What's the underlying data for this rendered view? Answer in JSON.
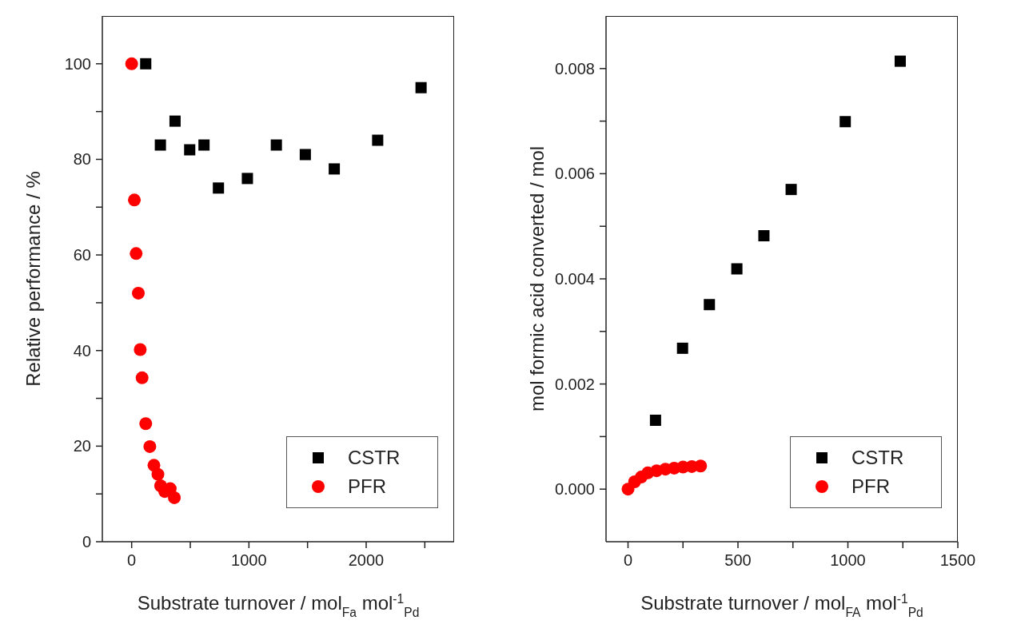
{
  "chart_data": [
    {
      "type": "scatter",
      "xlabel": "Substrate turnover / mol$_{Fa}$ mol$^{-1}$$_{Pd}$",
      "ylabel": "Relative performance / %",
      "xlim": [
        -250,
        2750
      ],
      "xticks": [
        0,
        {
          "value": 500,
          "label": null
        },
        1000,
        {
          "value": 1500,
          "label": null
        },
        2000,
        {
          "value": 2500,
          "label": null
        }
      ],
      "ylim": [
        0,
        110
      ],
      "yticks": [
        0,
        {
          "value": 10,
          "label": null
        },
        20,
        {
          "value": 30,
          "label": null
        },
        40,
        {
          "value": 50,
          "label": null
        },
        60,
        {
          "value": 70,
          "label": null
        },
        80,
        {
          "value": 90,
          "label": null
        },
        100
      ],
      "grid": false,
      "legend": "bottom right",
      "series": [
        {
          "name": "CSTR",
          "color": "#000000",
          "marker": "square",
          "x": [
            120,
            245,
            370,
            495,
            617,
            740,
            987,
            1234,
            1481,
            1728,
            2098,
            2468
          ],
          "values": [
            100,
            83,
            88,
            82,
            83,
            74,
            76,
            83,
            81,
            78,
            84,
            95
          ]
        },
        {
          "name": "PFR",
          "color": "#ff0000",
          "marker": "circle",
          "x": [
            0,
            23,
            38,
            57,
            73,
            89,
            120,
            155,
            190,
            224,
            247,
            282,
            329,
            364
          ],
          "values": [
            100,
            71.5,
            60.3,
            52,
            40.2,
            34.3,
            24.7,
            19.9,
            16,
            14.1,
            11.7,
            10.5,
            11.1,
            9.2
          ]
        }
      ]
    },
    {
      "type": "scatter",
      "xlabel": "Substrate turnover / mol$_{FA}$ mol$^{-1}$$_{Pd}$",
      "ylabel": "mol formic acid converted / mol",
      "xlim": [
        -100,
        1500
      ],
      "xticks": [
        0,
        {
          "value": 250,
          "label": null
        },
        500,
        {
          "value": 750,
          "label": null
        },
        1000,
        {
          "value": 1250,
          "label": null
        },
        1500
      ],
      "ylim": [
        -0.001,
        0.009
      ],
      "yticks": [
        {
          "value": 0,
          "label": "0.000"
        },
        {
          "value": 0.001,
          "label": null
        },
        {
          "value": 0.002,
          "label": "0.002"
        },
        {
          "value": 0.003,
          "label": null
        },
        {
          "value": 0.004,
          "label": "0.004"
        },
        {
          "value": 0.005,
          "label": null
        },
        {
          "value": 0.006,
          "label": "0.006"
        },
        {
          "value": 0.007,
          "label": null
        },
        {
          "value": 0.008,
          "label": "0.008"
        }
      ],
      "grid": false,
      "legend": "bottom right",
      "series": [
        {
          "name": "CSTR",
          "color": "#000000",
          "marker": "square",
          "x": [
            125,
            248,
            370,
            495,
            618,
            742,
            988,
            1238
          ],
          "values": [
            0.00131,
            0.00268,
            0.00351,
            0.00419,
            0.00482,
            0.0057,
            0.00699,
            0.00814
          ]
        },
        {
          "name": "PFR",
          "color": "#ff0000",
          "marker": "circle",
          "x": [
            0,
            30,
            60,
            90,
            130,
            170,
            210,
            250,
            290,
            330
          ],
          "values": [
            0,
            0.00014,
            0.00023,
            0.00031,
            0.00035,
            0.00038,
            0.0004,
            0.00042,
            0.00043,
            0.00044
          ]
        }
      ]
    }
  ]
}
